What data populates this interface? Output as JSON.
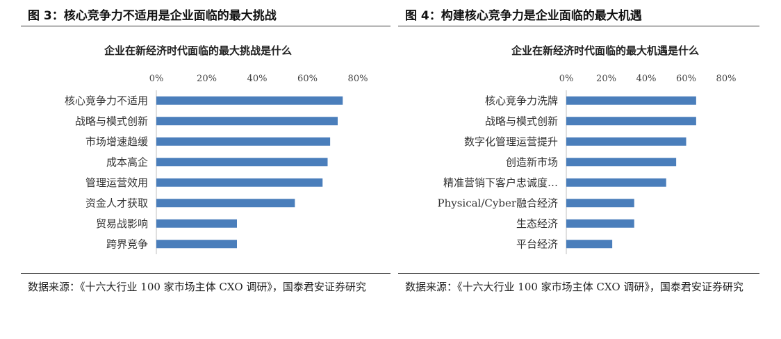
{
  "figures": [
    {
      "title": "图 3：核心竞争力不适用是企业面临的最大挑战",
      "source": "数据来源：《十六大行业 100 家市场主体 CXO 调研》，国泰君安证券研究"
    },
    {
      "title": "图 4：构建核心竞争力是企业面临的最大机遇",
      "source": "数据来源：《十六大行业 100 家市场主体 CXO 调研》，国泰君安证券研究"
    }
  ],
  "chart_data": [
    {
      "type": "bar",
      "orientation": "horizontal",
      "title": "企业在新经济时代面临的最大挑战是什么",
      "categories": [
        "核心竞争力不适用",
        "战略与模式创新",
        "市场增速趋缓",
        "成本高企",
        "管理运营效用",
        "资金人才获取",
        "贸易战影响",
        "跨界竞争"
      ],
      "values": [
        74,
        72,
        69,
        68,
        66,
        55,
        32,
        32
      ],
      "xlim": [
        0,
        80
      ],
      "ticks": [
        "0%",
        "20%",
        "40%",
        "60%",
        "80%"
      ],
      "tick_values": [
        0,
        20,
        40,
        60,
        80
      ],
      "axis_position": "top",
      "bar_color": "#4a7ebb",
      "grid": false
    },
    {
      "type": "bar",
      "orientation": "horizontal",
      "title": "企业在新经济时代面临的最大机遇是什么",
      "categories": [
        "核心竞争力洗牌",
        "战略与模式创新",
        "数字化管理运营提升",
        "创造新市场",
        "精准营销下客户忠诚度…",
        "Physical/Cyber融合经济",
        "生态经济",
        "平台经济"
      ],
      "values": [
        65,
        65,
        60,
        55,
        50,
        34,
        34,
        23
      ],
      "xlim": [
        0,
        80
      ],
      "ticks": [
        "0%",
        "20%",
        "40%",
        "60%",
        "80%"
      ],
      "tick_values": [
        0,
        20,
        40,
        60,
        80
      ],
      "axis_position": "top",
      "bar_color": "#4a7ebb",
      "grid": false
    }
  ]
}
